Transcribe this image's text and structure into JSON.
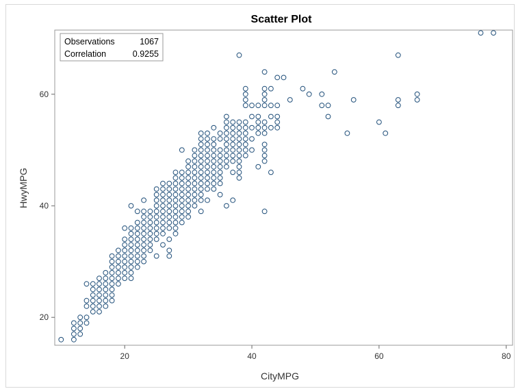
{
  "chart_data": {
    "type": "scatter",
    "title": "Scatter Plot",
    "xlabel": "CityMPG",
    "ylabel": "HwyMPG",
    "xlim": [
      9,
      81
    ],
    "ylim": [
      15,
      71.5
    ],
    "xticks": [
      20,
      40,
      60,
      80
    ],
    "yticks": [
      20,
      40,
      60
    ],
    "grid": false,
    "marker": "hollow-circle",
    "marker_color": "#1f4e79",
    "stats": {
      "observations_label": "Observations",
      "observations_value": "1067",
      "correlation_label": "Correlation",
      "correlation_value": "0.9255"
    },
    "points": [
      [
        10,
        16
      ],
      [
        12,
        16
      ],
      [
        12,
        17
      ],
      [
        12,
        18
      ],
      [
        12,
        19
      ],
      [
        13,
        17
      ],
      [
        13,
        18
      ],
      [
        13,
        19
      ],
      [
        13,
        20
      ],
      [
        14,
        19
      ],
      [
        14,
        20
      ],
      [
        14,
        22
      ],
      [
        14,
        23
      ],
      [
        14,
        26
      ],
      [
        15,
        21
      ],
      [
        15,
        22
      ],
      [
        15,
        23
      ],
      [
        15,
        24
      ],
      [
        15,
        25
      ],
      [
        15,
        26
      ],
      [
        16,
        21
      ],
      [
        16,
        22
      ],
      [
        16,
        23
      ],
      [
        16,
        24
      ],
      [
        16,
        25
      ],
      [
        16,
        26
      ],
      [
        16,
        27
      ],
      [
        17,
        22
      ],
      [
        17,
        23
      ],
      [
        17,
        24
      ],
      [
        17,
        25
      ],
      [
        17,
        26
      ],
      [
        17,
        27
      ],
      [
        17,
        28
      ],
      [
        18,
        23
      ],
      [
        18,
        24
      ],
      [
        18,
        25
      ],
      [
        18,
        26
      ],
      [
        18,
        27
      ],
      [
        18,
        28
      ],
      [
        18,
        29
      ],
      [
        18,
        30
      ],
      [
        18,
        31
      ],
      [
        19,
        26
      ],
      [
        19,
        27
      ],
      [
        19,
        28
      ],
      [
        19,
        29
      ],
      [
        19,
        30
      ],
      [
        19,
        31
      ],
      [
        19,
        32
      ],
      [
        20,
        27
      ],
      [
        20,
        28
      ],
      [
        20,
        29
      ],
      [
        20,
        30
      ],
      [
        20,
        31
      ],
      [
        20,
        32
      ],
      [
        20,
        33
      ],
      [
        20,
        34
      ],
      [
        20,
        36
      ],
      [
        21,
        27
      ],
      [
        21,
        28
      ],
      [
        21,
        29
      ],
      [
        21,
        30
      ],
      [
        21,
        31
      ],
      [
        21,
        32
      ],
      [
        21,
        33
      ],
      [
        21,
        34
      ],
      [
        21,
        35
      ],
      [
        21,
        36
      ],
      [
        21,
        40
      ],
      [
        22,
        29
      ],
      [
        22,
        30
      ],
      [
        22,
        31
      ],
      [
        22,
        32
      ],
      [
        22,
        33
      ],
      [
        22,
        34
      ],
      [
        22,
        35
      ],
      [
        22,
        36
      ],
      [
        22,
        37
      ],
      [
        22,
        39
      ],
      [
        23,
        30
      ],
      [
        23,
        31
      ],
      [
        23,
        32
      ],
      [
        23,
        33
      ],
      [
        23,
        34
      ],
      [
        23,
        35
      ],
      [
        23,
        36
      ],
      [
        23,
        37
      ],
      [
        23,
        38
      ],
      [
        23,
        39
      ],
      [
        23,
        41
      ],
      [
        24,
        32
      ],
      [
        24,
        33
      ],
      [
        24,
        34
      ],
      [
        24,
        35
      ],
      [
        24,
        36
      ],
      [
        24,
        37
      ],
      [
        24,
        38
      ],
      [
        24,
        39
      ],
      [
        25,
        31
      ],
      [
        25,
        34
      ],
      [
        25,
        35
      ],
      [
        25,
        36
      ],
      [
        25,
        37
      ],
      [
        25,
        38
      ],
      [
        25,
        39
      ],
      [
        25,
        40
      ],
      [
        25,
        41
      ],
      [
        25,
        42
      ],
      [
        25,
        43
      ],
      [
        26,
        33
      ],
      [
        26,
        35
      ],
      [
        26,
        36
      ],
      [
        26,
        37
      ],
      [
        26,
        38
      ],
      [
        26,
        39
      ],
      [
        26,
        40
      ],
      [
        26,
        41
      ],
      [
        26,
        42
      ],
      [
        26,
        43
      ],
      [
        26,
        44
      ],
      [
        27,
        31
      ],
      [
        27,
        32
      ],
      [
        27,
        34
      ],
      [
        27,
        36
      ],
      [
        27,
        37
      ],
      [
        27,
        38
      ],
      [
        27,
        39
      ],
      [
        27,
        40
      ],
      [
        27,
        41
      ],
      [
        27,
        42
      ],
      [
        27,
        43
      ],
      [
        27,
        44
      ],
      [
        28,
        35
      ],
      [
        28,
        36
      ],
      [
        28,
        37
      ],
      [
        28,
        38
      ],
      [
        28,
        39
      ],
      [
        28,
        40
      ],
      [
        28,
        41
      ],
      [
        28,
        42
      ],
      [
        28,
        43
      ],
      [
        28,
        44
      ],
      [
        28,
        45
      ],
      [
        28,
        46
      ],
      [
        29,
        37
      ],
      [
        29,
        38
      ],
      [
        29,
        39
      ],
      [
        29,
        40
      ],
      [
        29,
        41
      ],
      [
        29,
        42
      ],
      [
        29,
        43
      ],
      [
        29,
        44
      ],
      [
        29,
        45
      ],
      [
        29,
        46
      ],
      [
        29,
        50
      ],
      [
        30,
        38
      ],
      [
        30,
        39
      ],
      [
        30,
        40
      ],
      [
        30,
        41
      ],
      [
        30,
        42
      ],
      [
        30,
        43
      ],
      [
        30,
        44
      ],
      [
        30,
        45
      ],
      [
        30,
        46
      ],
      [
        30,
        47
      ],
      [
        30,
        48
      ],
      [
        31,
        40
      ],
      [
        31,
        41
      ],
      [
        31,
        42
      ],
      [
        31,
        43
      ],
      [
        31,
        44
      ],
      [
        31,
        45
      ],
      [
        31,
        46
      ],
      [
        31,
        47
      ],
      [
        31,
        48
      ],
      [
        31,
        49
      ],
      [
        31,
        50
      ],
      [
        32,
        39
      ],
      [
        32,
        41
      ],
      [
        32,
        42
      ],
      [
        32,
        43
      ],
      [
        32,
        44
      ],
      [
        32,
        45
      ],
      [
        32,
        46
      ],
      [
        32,
        47
      ],
      [
        32,
        48
      ],
      [
        32,
        49
      ],
      [
        32,
        50
      ],
      [
        32,
        51
      ],
      [
        32,
        52
      ],
      [
        32,
        53
      ],
      [
        33,
        41
      ],
      [
        33,
        43
      ],
      [
        33,
        44
      ],
      [
        33,
        45
      ],
      [
        33,
        46
      ],
      [
        33,
        47
      ],
      [
        33,
        48
      ],
      [
        33,
        49
      ],
      [
        33,
        50
      ],
      [
        33,
        51
      ],
      [
        33,
        52
      ],
      [
        33,
        53
      ],
      [
        34,
        43
      ],
      [
        34,
        44
      ],
      [
        34,
        45
      ],
      [
        34,
        46
      ],
      [
        34,
        47
      ],
      [
        34,
        48
      ],
      [
        34,
        49
      ],
      [
        34,
        50
      ],
      [
        34,
        51
      ],
      [
        34,
        52
      ],
      [
        34,
        54
      ],
      [
        35,
        42
      ],
      [
        35,
        44
      ],
      [
        35,
        45
      ],
      [
        35,
        46
      ],
      [
        35,
        47
      ],
      [
        35,
        48
      ],
      [
        35,
        49
      ],
      [
        35,
        50
      ],
      [
        35,
        52
      ],
      [
        35,
        53
      ],
      [
        36,
        40
      ],
      [
        36,
        47
      ],
      [
        36,
        48
      ],
      [
        36,
        49
      ],
      [
        36,
        50
      ],
      [
        36,
        51
      ],
      [
        36,
        52
      ],
      [
        36,
        53
      ],
      [
        36,
        54
      ],
      [
        36,
        55
      ],
      [
        36,
        56
      ],
      [
        37,
        41
      ],
      [
        37,
        46
      ],
      [
        37,
        48
      ],
      [
        37,
        49
      ],
      [
        37,
        50
      ],
      [
        37,
        51
      ],
      [
        37,
        52
      ],
      [
        37,
        53
      ],
      [
        37,
        54
      ],
      [
        37,
        55
      ],
      [
        38,
        45
      ],
      [
        38,
        46
      ],
      [
        38,
        47
      ],
      [
        38,
        48
      ],
      [
        38,
        49
      ],
      [
        38,
        50
      ],
      [
        38,
        51
      ],
      [
        38,
        52
      ],
      [
        38,
        53
      ],
      [
        38,
        54
      ],
      [
        38,
        55
      ],
      [
        38,
        67
      ],
      [
        39,
        49
      ],
      [
        39,
        50
      ],
      [
        39,
        51
      ],
      [
        39,
        52
      ],
      [
        39,
        53
      ],
      [
        39,
        54
      ],
      [
        39,
        55
      ],
      [
        39,
        58
      ],
      [
        39,
        59
      ],
      [
        39,
        60
      ],
      [
        39,
        61
      ],
      [
        40,
        50
      ],
      [
        40,
        52
      ],
      [
        40,
        54
      ],
      [
        40,
        56
      ],
      [
        40,
        58
      ],
      [
        41,
        47
      ],
      [
        41,
        53
      ],
      [
        41,
        54
      ],
      [
        41,
        55
      ],
      [
        41,
        56
      ],
      [
        41,
        58
      ],
      [
        42,
        39
      ],
      [
        42,
        48
      ],
      [
        42,
        49
      ],
      [
        42,
        50
      ],
      [
        42,
        51
      ],
      [
        42,
        53
      ],
      [
        42,
        54
      ],
      [
        42,
        55
      ],
      [
        42,
        58
      ],
      [
        42,
        59
      ],
      [
        42,
        60
      ],
      [
        42,
        61
      ],
      [
        42,
        64
      ],
      [
        43,
        46
      ],
      [
        43,
        54
      ],
      [
        43,
        56
      ],
      [
        43,
        58
      ],
      [
        43,
        61
      ],
      [
        44,
        54
      ],
      [
        44,
        55
      ],
      [
        44,
        56
      ],
      [
        44,
        58
      ],
      [
        44,
        63
      ],
      [
        45,
        63
      ],
      [
        46,
        59
      ],
      [
        48,
        61
      ],
      [
        49,
        60
      ],
      [
        51,
        58
      ],
      [
        51,
        60
      ],
      [
        52,
        56
      ],
      [
        52,
        58
      ],
      [
        53,
        64
      ],
      [
        55,
        53
      ],
      [
        56,
        59
      ],
      [
        60,
        55
      ],
      [
        61,
        53
      ],
      [
        63,
        58
      ],
      [
        63,
        59
      ],
      [
        63,
        67
      ],
      [
        66,
        59
      ],
      [
        66,
        60
      ],
      [
        76,
        71
      ],
      [
        78,
        71
      ]
    ]
  }
}
